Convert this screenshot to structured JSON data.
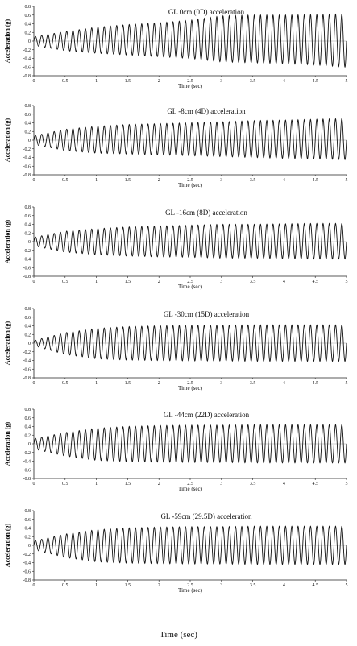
{
  "figure": {
    "footer_xlabel": "Time (sec)"
  },
  "chart_data": [
    {
      "type": "line",
      "title": "GL 0cm (0D) acceleration",
      "xlabel": "Time (sec)",
      "ylabel": "Acceleration (g)",
      "xlim": [
        0,
        5
      ],
      "ylim": [
        -0.8,
        0.8
      ],
      "xticks": [
        "0",
        "0.5",
        "1",
        "1.5",
        "2",
        "2.5",
        "3",
        "3.5",
        "4",
        "4.5",
        "5"
      ],
      "yticks": [
        "0.8",
        "0.6",
        "0.4",
        "0.2",
        "0",
        "-0.2",
        "-0.4",
        "-0.6",
        "-0.8"
      ],
      "series": [
        {
          "frequency_hz": 10,
          "duration_s": 5,
          "peak_max": 0.62,
          "trough_min": -0.6,
          "envelope_pos": [
            [
              0,
              0.1
            ],
            [
              0.5,
              0.22
            ],
            [
              1,
              0.32
            ],
            [
              1.5,
              0.38
            ],
            [
              2,
              0.42
            ],
            [
              2.5,
              0.48
            ],
            [
              3,
              0.58
            ],
            [
              3.5,
              0.6
            ],
            [
              4,
              0.6
            ],
            [
              4.5,
              0.61
            ],
            [
              5,
              0.62
            ]
          ],
          "envelope_neg": [
            [
              0,
              -0.1
            ],
            [
              0.5,
              -0.22
            ],
            [
              1,
              -0.28
            ],
            [
              1.5,
              -0.32
            ],
            [
              2,
              -0.36
            ],
            [
              2.5,
              -0.4
            ],
            [
              3,
              -0.48
            ],
            [
              3.5,
              -0.5
            ],
            [
              4,
              -0.52
            ],
            [
              4.5,
              -0.55
            ],
            [
              5,
              -0.6
            ]
          ]
        }
      ]
    },
    {
      "type": "line",
      "title": "GL -8cm (4D) acceleration",
      "xlabel": "Time (sec)",
      "ylabel": "Acceleration (g)",
      "xlim": [
        0,
        5
      ],
      "ylim": [
        -0.8,
        0.8
      ],
      "xticks": [
        "0",
        "0.5",
        "1",
        "1.5",
        "2",
        "2.5",
        "3",
        "3.5",
        "4",
        "4.5",
        "5"
      ],
      "yticks": [
        "0.8",
        "0.6",
        "0.4",
        "0.2",
        "0",
        "-0.2",
        "-0.4",
        "-0.6",
        "-0.8"
      ],
      "series": [
        {
          "frequency_hz": 10,
          "duration_s": 5,
          "peak_max": 0.5,
          "trough_min": -0.45,
          "envelope_pos": [
            [
              0,
              0.1
            ],
            [
              0.5,
              0.25
            ],
            [
              1,
              0.32
            ],
            [
              1.5,
              0.36
            ],
            [
              2,
              0.38
            ],
            [
              2.5,
              0.4
            ],
            [
              3,
              0.42
            ],
            [
              3.5,
              0.45
            ],
            [
              4,
              0.46
            ],
            [
              4.5,
              0.48
            ],
            [
              5,
              0.5
            ]
          ],
          "envelope_neg": [
            [
              0,
              -0.1
            ],
            [
              0.5,
              -0.24
            ],
            [
              1,
              -0.3
            ],
            [
              1.5,
              -0.32
            ],
            [
              2,
              -0.34
            ],
            [
              2.5,
              -0.36
            ],
            [
              3,
              -0.38
            ],
            [
              3.5,
              -0.4
            ],
            [
              4,
              -0.42
            ],
            [
              4.5,
              -0.43
            ],
            [
              5,
              -0.45
            ]
          ]
        }
      ]
    },
    {
      "type": "line",
      "title": "GL -16cm (8D) acceleration",
      "xlabel": "Time (sec)",
      "ylabel": "Acceleration (g)",
      "xlim": [
        0,
        5
      ],
      "ylim": [
        -0.8,
        0.8
      ],
      "xticks": [
        "0",
        "0.5",
        "1",
        "1.5",
        "2",
        "2.5",
        "3",
        "3.5",
        "4",
        "4.5",
        "5"
      ],
      "yticks": [
        "0.8",
        "0.6",
        "0.4",
        "0.2",
        "0",
        "-0.2",
        "-0.4",
        "-0.6",
        "-0.8"
      ],
      "series": [
        {
          "frequency_hz": 10,
          "duration_s": 5,
          "peak_max": 0.42,
          "trough_min": -0.4,
          "envelope_pos": [
            [
              0,
              0.1
            ],
            [
              0.5,
              0.24
            ],
            [
              1,
              0.3
            ],
            [
              1.5,
              0.34
            ],
            [
              2,
              0.36
            ],
            [
              2.5,
              0.38
            ],
            [
              3,
              0.4
            ],
            [
              3.5,
              0.4
            ],
            [
              4,
              0.41
            ],
            [
              4.5,
              0.42
            ],
            [
              5,
              0.42
            ]
          ],
          "envelope_neg": [
            [
              0,
              -0.1
            ],
            [
              0.5,
              -0.24
            ],
            [
              1,
              -0.3
            ],
            [
              1.5,
              -0.33
            ],
            [
              2,
              -0.35
            ],
            [
              2.5,
              -0.36
            ],
            [
              3,
              -0.38
            ],
            [
              3.5,
              -0.38
            ],
            [
              4,
              -0.39
            ],
            [
              4.5,
              -0.4
            ],
            [
              5,
              -0.4
            ]
          ]
        }
      ]
    },
    {
      "type": "line",
      "title": "GL -30cm (15D) acceleration",
      "xlabel": "Time (sec)",
      "ylabel": "Acceleration (g)",
      "xlim": [
        0,
        5
      ],
      "ylim": [
        -0.8,
        0.8
      ],
      "xticks": [
        "0",
        "0.5",
        "1",
        "1.5",
        "2",
        "2.5",
        "3",
        "3.5",
        "4",
        "4.5",
        "5"
      ],
      "yticks": [
        "0.8",
        "0.6",
        "0.4",
        "0.2",
        "0",
        "-0.2",
        "-0.4",
        "-0.6",
        "-0.8"
      ],
      "series": [
        {
          "frequency_hz": 10,
          "duration_s": 5,
          "peak_max": 0.42,
          "trough_min": -0.42,
          "envelope_pos": [
            [
              0,
              0.06
            ],
            [
              0.5,
              0.24
            ],
            [
              1,
              0.34
            ],
            [
              1.5,
              0.38
            ],
            [
              2,
              0.4
            ],
            [
              2.5,
              0.41
            ],
            [
              3,
              0.41
            ],
            [
              3.5,
              0.42
            ],
            [
              4,
              0.42
            ],
            [
              4.5,
              0.42
            ],
            [
              5,
              0.42
            ]
          ],
          "envelope_neg": [
            [
              0,
              -0.06
            ],
            [
              0.5,
              -0.26
            ],
            [
              1,
              -0.36
            ],
            [
              1.5,
              -0.39
            ],
            [
              2,
              -0.4
            ],
            [
              2.5,
              -0.41
            ],
            [
              3,
              -0.41
            ],
            [
              3.5,
              -0.42
            ],
            [
              4,
              -0.42
            ],
            [
              4.5,
              -0.42
            ],
            [
              5,
              -0.42
            ]
          ]
        }
      ]
    },
    {
      "type": "line",
      "title": "GL -44cm (22D) acceleration",
      "xlabel": "Time (sec)",
      "ylabel": "Acceleration (g)",
      "xlim": [
        0,
        5
      ],
      "ylim": [
        -0.8,
        0.8
      ],
      "xticks": [
        "0",
        "0.5",
        "1",
        "1.5",
        "2",
        "2.5",
        "3",
        "3.5",
        "4",
        "4.5",
        "5"
      ],
      "yticks": [
        "0.8",
        "0.6",
        "0.4",
        "0.2",
        "0",
        "-0.2",
        "-0.4",
        "-0.6",
        "-0.8"
      ],
      "series": [
        {
          "frequency_hz": 10,
          "duration_s": 5,
          "peak_max": 0.44,
          "trough_min": -0.44,
          "envelope_pos": [
            [
              0,
              0.12
            ],
            [
              0.5,
              0.26
            ],
            [
              1,
              0.36
            ],
            [
              1.5,
              0.4
            ],
            [
              2,
              0.42
            ],
            [
              2.5,
              0.43
            ],
            [
              3,
              0.43
            ],
            [
              3.5,
              0.44
            ],
            [
              4,
              0.44
            ],
            [
              4.5,
              0.44
            ],
            [
              5,
              0.44
            ]
          ],
          "envelope_neg": [
            [
              0,
              -0.12
            ],
            [
              0.5,
              -0.28
            ],
            [
              1,
              -0.38
            ],
            [
              1.5,
              -0.41
            ],
            [
              2,
              -0.42
            ],
            [
              2.5,
              -0.43
            ],
            [
              3,
              -0.43
            ],
            [
              3.5,
              -0.44
            ],
            [
              4,
              -0.44
            ],
            [
              4.5,
              -0.44
            ],
            [
              5,
              -0.44
            ]
          ]
        }
      ]
    },
    {
      "type": "line",
      "title": "GL -59cm (29.5D) acceleration",
      "xlabel": "Time (sec)",
      "ylabel": "Acceleration (g)",
      "xlim": [
        0,
        5
      ],
      "ylim": [
        -0.8,
        0.8
      ],
      "xticks": [
        "0",
        "0.5",
        "1",
        "1.5",
        "2",
        "2.5",
        "3",
        "3.5",
        "4",
        "4.5",
        "5"
      ],
      "yticks": [
        "0.8",
        "0.6",
        "0.4",
        "0.2",
        "0",
        "-0.2",
        "-0.4",
        "-0.6",
        "-0.8"
      ],
      "series": [
        {
          "frequency_hz": 10,
          "duration_s": 5,
          "peak_max": 0.44,
          "trough_min": -0.44,
          "envelope_pos": [
            [
              0,
              0.1
            ],
            [
              0.5,
              0.26
            ],
            [
              1,
              0.36
            ],
            [
              1.5,
              0.4
            ],
            [
              2,
              0.42
            ],
            [
              2.5,
              0.43
            ],
            [
              3,
              0.43
            ],
            [
              3.5,
              0.44
            ],
            [
              4,
              0.44
            ],
            [
              4.5,
              0.44
            ],
            [
              5,
              0.44
            ]
          ],
          "envelope_neg": [
            [
              0,
              -0.1
            ],
            [
              0.5,
              -0.28
            ],
            [
              1,
              -0.38
            ],
            [
              1.5,
              -0.41
            ],
            [
              2,
              -0.42
            ],
            [
              2.5,
              -0.43
            ],
            [
              3,
              -0.43
            ],
            [
              3.5,
              -0.44
            ],
            [
              4,
              -0.44
            ],
            [
              4.5,
              -0.44
            ],
            [
              5,
              -0.44
            ]
          ]
        }
      ]
    }
  ]
}
